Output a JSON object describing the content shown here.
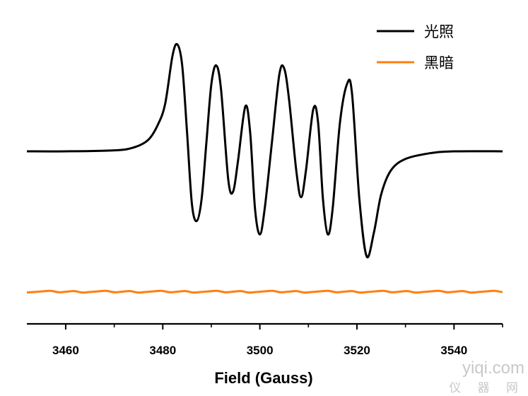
{
  "chart_data": {
    "type": "line",
    "title": "",
    "xlabel": "Field (Gauss)",
    "ylabel": "",
    "xlim": [
      3452,
      3550
    ],
    "x_ticks": [
      3460,
      3480,
      3500,
      3520,
      3540
    ],
    "x_tick_labels": [
      "3460",
      "3480",
      "3500",
      "3520",
      "3540"
    ],
    "y_ticks_shown": false,
    "y_axis_visible": false,
    "grid": false,
    "legend_position": "top-right",
    "series": [
      {
        "name": "光照",
        "color": "#000000",
        "baseline": 0.0,
        "points": [
          [
            3452,
            0.0
          ],
          [
            3460,
            0.0
          ],
          [
            3470,
            0.01
          ],
          [
            3474,
            0.04
          ],
          [
            3477,
            0.12
          ],
          [
            3479,
            0.28
          ],
          [
            3480.5,
            0.5
          ],
          [
            3482,
            1.0
          ],
          [
            3483,
            1.12
          ],
          [
            3484,
            0.9
          ],
          [
            3485,
            0.2
          ],
          [
            3486,
            -0.55
          ],
          [
            3487,
            -0.73
          ],
          [
            3488,
            -0.5
          ],
          [
            3489,
            0.1
          ],
          [
            3490,
            0.7
          ],
          [
            3491,
            0.9
          ],
          [
            3492,
            0.65
          ],
          [
            3493.5,
            -0.3
          ],
          [
            3494.5,
            -0.42
          ],
          [
            3495.5,
            -0.1
          ],
          [
            3497,
            0.47
          ],
          [
            3498,
            0.2
          ],
          [
            3499,
            -0.6
          ],
          [
            3500,
            -0.87
          ],
          [
            3501,
            -0.6
          ],
          [
            3502.5,
            0.1
          ],
          [
            3504,
            0.8
          ],
          [
            3505,
            0.87
          ],
          [
            3506,
            0.55
          ],
          [
            3507.5,
            -0.2
          ],
          [
            3508.5,
            -0.48
          ],
          [
            3509.5,
            -0.2
          ],
          [
            3511,
            0.44
          ],
          [
            3512,
            0.3
          ],
          [
            3513,
            -0.5
          ],
          [
            3514,
            -0.87
          ],
          [
            3515,
            -0.6
          ],
          [
            3516.5,
            0.3
          ],
          [
            3518,
            0.71
          ],
          [
            3519,
            0.6
          ],
          [
            3520.5,
            -0.5
          ],
          [
            3522,
            -1.1
          ],
          [
            3523.5,
            -0.85
          ],
          [
            3525,
            -0.45
          ],
          [
            3527,
            -0.2
          ],
          [
            3530,
            -0.08
          ],
          [
            3535,
            -0.02
          ],
          [
            3540,
            0.0
          ],
          [
            3550,
            0.0
          ]
        ]
      },
      {
        "name": "黑暗",
        "color": "#ff7f0e",
        "baseline": -1.47,
        "points": [
          [
            3452,
            -1.47
          ],
          [
            3550,
            -1.47
          ]
        ]
      }
    ]
  },
  "watermark": {
    "line1": "yiqi.com",
    "line2": "仪 器 网"
  }
}
